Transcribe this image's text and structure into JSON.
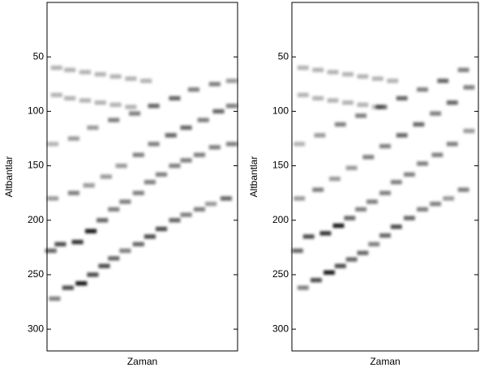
{
  "chart_data": [
    {
      "type": "heatmap",
      "xlabel": "Zaman",
      "ylabel": "Altbantlar",
      "ylim": [
        0,
        320
      ],
      "invert_y": true,
      "xlim": [
        0,
        100
      ],
      "yticks": [
        50,
        100,
        150,
        200,
        250,
        300
      ],
      "color": "#000000",
      "x": [
        4,
        11,
        18,
        24,
        30,
        35,
        41,
        48,
        54,
        60,
        67,
        73,
        80,
        86,
        94,
        2,
        7,
        16,
        23,
        29,
        35,
        41,
        48,
        54,
        60,
        67,
        73,
        80,
        88,
        97,
        3,
        14,
        22,
        31,
        39,
        48,
        56,
        65,
        73,
        82,
        90,
        97,
        3,
        14,
        24,
        35,
        46,
        56,
        67,
        77,
        88,
        97,
        5,
        12,
        20,
        28,
        36,
        44,
        52,
        5,
        12,
        20,
        28,
        36,
        44
      ],
      "y": [
        272,
        262,
        258,
        250,
        242,
        235,
        228,
        222,
        215,
        208,
        200,
        195,
        190,
        185,
        180,
        228,
        222,
        220,
        210,
        200,
        190,
        183,
        175,
        165,
        158,
        150,
        145,
        140,
        133,
        130,
        180,
        175,
        168,
        160,
        150,
        140,
        130,
        122,
        115,
        108,
        100,
        95,
        130,
        125,
        115,
        108,
        102,
        95,
        88,
        80,
        75,
        72,
        60,
        62,
        64,
        66,
        68,
        70,
        72,
        85,
        88,
        90,
        92,
        94,
        96
      ],
      "values": [
        0.5,
        0.7,
        0.9,
        0.7,
        0.7,
        0.6,
        0.5,
        0.6,
        0.7,
        0.7,
        0.6,
        0.5,
        0.5,
        0.4,
        0.6,
        0.6,
        0.7,
        0.8,
        0.9,
        0.6,
        0.5,
        0.5,
        0.5,
        0.5,
        0.5,
        0.5,
        0.5,
        0.5,
        0.5,
        0.5,
        0.4,
        0.5,
        0.4,
        0.4,
        0.4,
        0.5,
        0.5,
        0.6,
        0.6,
        0.5,
        0.6,
        0.5,
        0.3,
        0.4,
        0.4,
        0.5,
        0.5,
        0.6,
        0.6,
        0.5,
        0.5,
        0.4,
        0.3,
        0.3,
        0.3,
        0.3,
        0.3,
        0.3,
        0.3,
        0.3,
        0.3,
        0.3,
        0.3,
        0.3,
        0.3
      ]
    },
    {
      "type": "heatmap",
      "xlabel": "Zaman",
      "ylabel": "Altbantlar",
      "ylim": [
        0,
        320
      ],
      "invert_y": true,
      "xlim": [
        0,
        100
      ],
      "yticks": [
        50,
        100,
        150,
        200,
        250,
        300
      ],
      "color": "#000000",
      "x": [
        6,
        13,
        20,
        26,
        32,
        38,
        44,
        50,
        56,
        63,
        70,
        77,
        84,
        92,
        3,
        9,
        18,
        25,
        31,
        37,
        43,
        50,
        56,
        63,
        70,
        78,
        86,
        95,
        4,
        14,
        23,
        32,
        41,
        50,
        59,
        68,
        77,
        86,
        95,
        4,
        15,
        26,
        37,
        48,
        59,
        70,
        81,
        92,
        6,
        14,
        22,
        30,
        38,
        46,
        54,
        6,
        14,
        22,
        30,
        38,
        46
      ],
      "y": [
        262,
        255,
        248,
        242,
        236,
        230,
        222,
        214,
        206,
        198,
        190,
        185,
        180,
        172,
        228,
        215,
        212,
        205,
        198,
        190,
        183,
        175,
        165,
        158,
        148,
        140,
        130,
        118,
        180,
        172,
        162,
        152,
        142,
        132,
        122,
        112,
        102,
        92,
        78,
        130,
        122,
        112,
        104,
        96,
        88,
        80,
        72,
        62,
        60,
        62,
        64,
        66,
        68,
        70,
        72,
        85,
        88,
        90,
        92,
        94,
        96
      ],
      "values": [
        0.5,
        0.7,
        0.9,
        0.7,
        0.6,
        0.6,
        0.5,
        0.6,
        0.7,
        0.6,
        0.5,
        0.5,
        0.4,
        0.5,
        0.6,
        0.7,
        0.8,
        0.9,
        0.6,
        0.5,
        0.5,
        0.5,
        0.5,
        0.5,
        0.5,
        0.5,
        0.5,
        0.4,
        0.4,
        0.5,
        0.4,
        0.4,
        0.5,
        0.5,
        0.6,
        0.6,
        0.5,
        0.6,
        0.5,
        0.3,
        0.4,
        0.5,
        0.5,
        0.6,
        0.6,
        0.5,
        0.6,
        0.5,
        0.3,
        0.3,
        0.3,
        0.3,
        0.3,
        0.3,
        0.3,
        0.3,
        0.3,
        0.3,
        0.3,
        0.3,
        0.3
      ]
    }
  ]
}
